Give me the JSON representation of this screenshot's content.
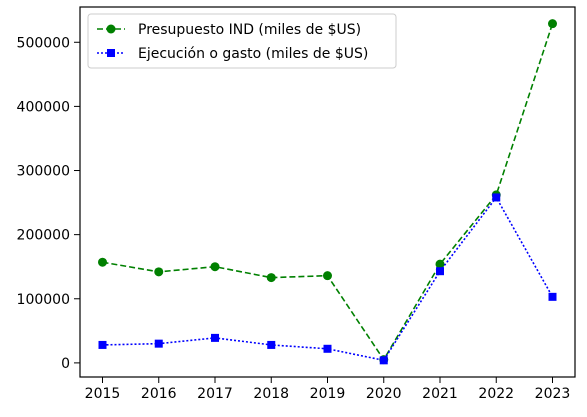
{
  "chart_data": {
    "type": "line",
    "title": "",
    "xlabel": "",
    "ylabel": "",
    "x": [
      "2015",
      "2016",
      "2017",
      "2018",
      "2019",
      "2020",
      "2021",
      "2022",
      "2023"
    ],
    "ylim": [
      -22000,
      555000
    ],
    "yticks": [
      0,
      100000,
      200000,
      300000,
      400000,
      500000
    ],
    "yticklabels": [
      "0",
      "100000",
      "200000",
      "300000",
      "400000",
      "500000"
    ],
    "grid": false,
    "legend_position": "top-left",
    "series": [
      {
        "name": "Presupuesto IND (miles de $US)",
        "color": "#008000",
        "line_style": "dashed",
        "marker": "circle",
        "values": [
          157000,
          142000,
          150000,
          133000,
          136000,
          5000,
          154000,
          262000,
          529000
        ]
      },
      {
        "name": "Ejecución o gasto (miles de $US)",
        "color": "#0000ff",
        "line_style": "dotted",
        "marker": "square",
        "values": [
          28000,
          30000,
          39000,
          28000,
          22000,
          4000,
          143000,
          258000,
          103000
        ]
      }
    ]
  }
}
